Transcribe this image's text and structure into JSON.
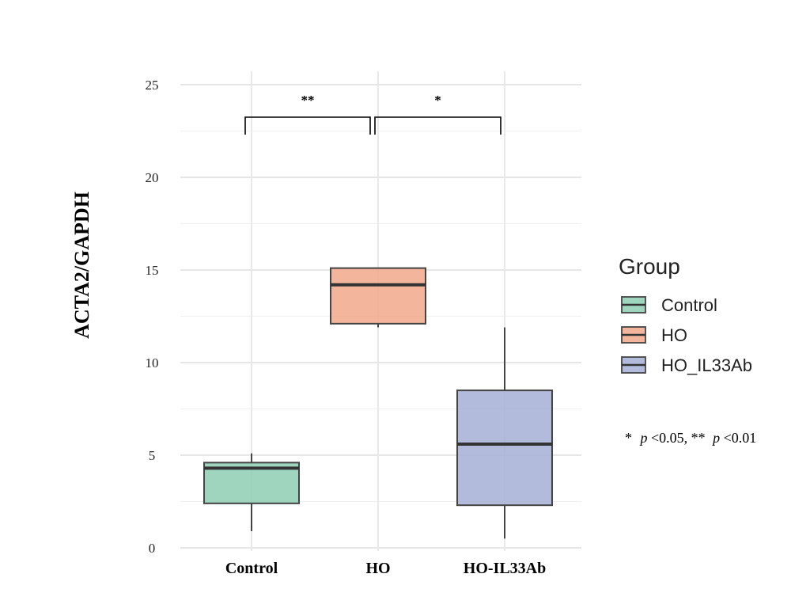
{
  "chart_data": {
    "type": "box",
    "title": "",
    "xlabel": "",
    "ylabel": "ACTA2/GAPDH",
    "ylim": [
      0,
      25
    ],
    "yticks": [
      0,
      5,
      10,
      15,
      20,
      25
    ],
    "grid": true,
    "categories": [
      "Control",
      "HO",
      "HO-IL33Ab"
    ],
    "boxes": [
      {
        "category": "Control",
        "min": 0.9,
        "q1": 2.4,
        "median": 4.3,
        "q3": 4.6,
        "max": 5.1,
        "color": "#8ECDB3"
      },
      {
        "category": "HO",
        "min": 11.9,
        "q1": 12.1,
        "median": 14.2,
        "q3": 15.1,
        "max": 15.1,
        "color": "#F1A98C"
      },
      {
        "category": "HO-IL33Ab",
        "min": 0.5,
        "q1": 2.3,
        "median": 5.6,
        "q3": 8.5,
        "max": 11.9,
        "color": "#A5AFD5"
      }
    ],
    "significance": [
      {
        "from": "Control",
        "to": "HO",
        "label": "**"
      },
      {
        "from": "HO",
        "to": "HO-IL33Ab",
        "label": "*"
      }
    ],
    "legend": {
      "title": "Group",
      "position": "right",
      "entries": [
        {
          "label": "Control",
          "color": "#8ECDB3"
        },
        {
          "label": "HO",
          "color": "#F1A98C"
        },
        {
          "label": "HO_IL33Ab",
          "color": "#A5AFD5"
        }
      ]
    },
    "note": {
      "mark1": "*",
      "p1": "p",
      "text1": "<0.05, ",
      "mark2": "**",
      "p2": "p",
      "text2": "<0.01"
    }
  }
}
